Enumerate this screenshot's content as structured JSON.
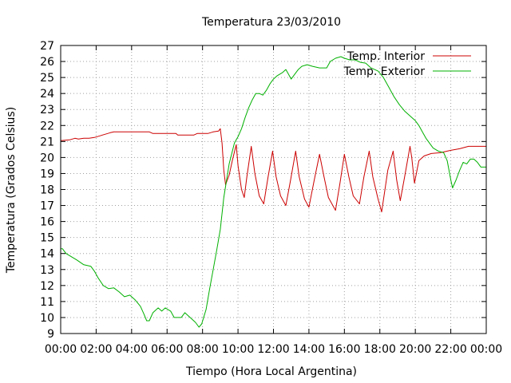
{
  "chart_data": {
    "type": "line",
    "title": "Temperatura 23/03/2010",
    "xlabel": "Tiempo (Hora Local Argentina)",
    "ylabel": "Temperatura (Grados Celsius)",
    "xlim": [
      0,
      24
    ],
    "ylim": [
      9,
      27
    ],
    "x_ticks": [
      "00:00",
      "02:00",
      "04:00",
      "06:00",
      "08:00",
      "10:00",
      "12:00",
      "14:00",
      "16:00",
      "18:00",
      "20:00",
      "22:00",
      "00:00"
    ],
    "y_ticks": [
      "9",
      "10",
      "11",
      "12",
      "13",
      "14",
      "15",
      "16",
      "17",
      "18",
      "19",
      "20",
      "21",
      "22",
      "23",
      "24",
      "25",
      "26",
      "27"
    ],
    "grid": true,
    "legend_position": "top-right",
    "series": [
      {
        "name": "Temp. Interior",
        "color": "#cc0000",
        "points": [
          [
            0.0,
            21.05
          ],
          [
            0.5,
            21.1
          ],
          [
            0.8,
            21.2
          ],
          [
            1.0,
            21.15
          ],
          [
            1.3,
            21.2
          ],
          [
            1.6,
            21.2
          ],
          [
            1.9,
            21.25
          ],
          [
            2.2,
            21.35
          ],
          [
            2.5,
            21.45
          ],
          [
            2.8,
            21.55
          ],
          [
            3.0,
            21.6
          ],
          [
            4.0,
            21.6
          ],
          [
            5.0,
            21.6
          ],
          [
            5.2,
            21.5
          ],
          [
            6.0,
            21.5
          ],
          [
            6.5,
            21.5
          ],
          [
            6.6,
            21.4
          ],
          [
            7.0,
            21.4
          ],
          [
            7.5,
            21.4
          ],
          [
            7.7,
            21.5
          ],
          [
            8.0,
            21.5
          ],
          [
            8.3,
            21.5
          ],
          [
            8.6,
            21.6
          ],
          [
            8.9,
            21.65
          ],
          [
            9.0,
            21.8
          ],
          [
            9.1,
            20.9
          ],
          [
            9.2,
            19.2
          ],
          [
            9.3,
            18.3
          ],
          [
            9.5,
            18.9
          ],
          [
            9.7,
            19.9
          ],
          [
            9.9,
            20.8
          ],
          [
            10.0,
            19.5
          ],
          [
            10.2,
            18.0
          ],
          [
            10.35,
            17.5
          ],
          [
            10.5,
            18.8
          ],
          [
            10.75,
            20.7
          ],
          [
            10.95,
            19.0
          ],
          [
            11.2,
            17.6
          ],
          [
            11.45,
            17.1
          ],
          [
            11.7,
            18.8
          ],
          [
            11.95,
            20.4
          ],
          [
            12.15,
            18.8
          ],
          [
            12.4,
            17.6
          ],
          [
            12.7,
            17.0
          ],
          [
            12.95,
            18.5
          ],
          [
            13.25,
            20.4
          ],
          [
            13.45,
            18.8
          ],
          [
            13.75,
            17.4
          ],
          [
            14.0,
            16.9
          ],
          [
            14.3,
            18.6
          ],
          [
            14.6,
            20.2
          ],
          [
            14.85,
            18.8
          ],
          [
            15.1,
            17.5
          ],
          [
            15.5,
            16.7
          ],
          [
            15.75,
            18.4
          ],
          [
            16.0,
            20.2
          ],
          [
            16.25,
            18.8
          ],
          [
            16.5,
            17.6
          ],
          [
            16.85,
            17.1
          ],
          [
            17.1,
            18.8
          ],
          [
            17.4,
            20.4
          ],
          [
            17.6,
            18.8
          ],
          [
            17.9,
            17.4
          ],
          [
            18.1,
            16.6
          ],
          [
            18.45,
            19.2
          ],
          [
            18.75,
            20.4
          ],
          [
            18.95,
            18.6
          ],
          [
            19.15,
            17.3
          ],
          [
            19.4,
            18.8
          ],
          [
            19.7,
            20.7
          ],
          [
            19.8,
            20.0
          ],
          [
            19.95,
            18.4
          ],
          [
            20.2,
            19.8
          ],
          [
            20.5,
            20.1
          ],
          [
            20.9,
            20.25
          ],
          [
            21.4,
            20.3
          ],
          [
            22.0,
            20.45
          ],
          [
            22.5,
            20.55
          ],
          [
            23.0,
            20.7
          ],
          [
            24.0,
            20.7
          ]
        ]
      },
      {
        "name": "Temp. Exterior",
        "color": "#00b000",
        "points": [
          [
            0.0,
            14.3
          ],
          [
            0.1,
            14.3
          ],
          [
            0.3,
            14.0
          ],
          [
            0.6,
            13.8
          ],
          [
            0.9,
            13.6
          ],
          [
            1.3,
            13.3
          ],
          [
            1.7,
            13.2
          ],
          [
            1.9,
            12.9
          ],
          [
            2.1,
            12.5
          ],
          [
            2.4,
            12.0
          ],
          [
            2.7,
            11.8
          ],
          [
            3.0,
            11.85
          ],
          [
            3.3,
            11.6
          ],
          [
            3.6,
            11.3
          ],
          [
            3.9,
            11.4
          ],
          [
            4.2,
            11.1
          ],
          [
            4.5,
            10.7
          ],
          [
            4.7,
            10.2
          ],
          [
            4.85,
            9.8
          ],
          [
            5.0,
            9.8
          ],
          [
            5.2,
            10.3
          ],
          [
            5.5,
            10.6
          ],
          [
            5.7,
            10.4
          ],
          [
            5.9,
            10.6
          ],
          [
            6.2,
            10.4
          ],
          [
            6.4,
            10.0
          ],
          [
            6.8,
            10.0
          ],
          [
            7.0,
            10.3
          ],
          [
            7.2,
            10.1
          ],
          [
            7.4,
            9.9
          ],
          [
            7.6,
            9.7
          ],
          [
            7.8,
            9.4
          ],
          [
            7.95,
            9.6
          ],
          [
            8.2,
            10.5
          ],
          [
            8.4,
            11.8
          ],
          [
            8.6,
            13.0
          ],
          [
            8.8,
            14.2
          ],
          [
            9.0,
            15.5
          ],
          [
            9.2,
            17.5
          ],
          [
            9.5,
            19.6
          ],
          [
            9.8,
            20.9
          ],
          [
            10.0,
            21.3
          ],
          [
            10.2,
            21.8
          ],
          [
            10.4,
            22.5
          ],
          [
            10.6,
            23.1
          ],
          [
            10.8,
            23.6
          ],
          [
            11.0,
            24.0
          ],
          [
            11.2,
            24.0
          ],
          [
            11.4,
            23.9
          ],
          [
            11.6,
            24.2
          ],
          [
            11.8,
            24.6
          ],
          [
            12.0,
            24.9
          ],
          [
            12.2,
            25.1
          ],
          [
            12.5,
            25.3
          ],
          [
            12.7,
            25.5
          ],
          [
            12.8,
            25.3
          ],
          [
            13.0,
            24.9
          ],
          [
            13.2,
            25.2
          ],
          [
            13.4,
            25.5
          ],
          [
            13.6,
            25.7
          ],
          [
            13.9,
            25.8
          ],
          [
            14.2,
            25.7
          ],
          [
            14.6,
            25.6
          ],
          [
            15.0,
            25.6
          ],
          [
            15.2,
            26.0
          ],
          [
            15.5,
            26.2
          ],
          [
            15.8,
            26.3
          ],
          [
            16.0,
            26.2
          ],
          [
            16.3,
            26.1
          ],
          [
            16.6,
            26.1
          ],
          [
            16.9,
            25.95
          ],
          [
            17.2,
            25.9
          ],
          [
            17.5,
            25.6
          ],
          [
            17.9,
            25.4
          ],
          [
            18.2,
            25.0
          ],
          [
            18.5,
            24.4
          ],
          [
            18.8,
            23.8
          ],
          [
            19.1,
            23.3
          ],
          [
            19.4,
            22.9
          ],
          [
            19.7,
            22.6
          ],
          [
            20.0,
            22.3
          ],
          [
            20.2,
            22.0
          ],
          [
            20.4,
            21.6
          ],
          [
            20.6,
            21.2
          ],
          [
            20.8,
            20.9
          ],
          [
            21.0,
            20.6
          ],
          [
            21.3,
            20.4
          ],
          [
            21.6,
            20.3
          ],
          [
            21.8,
            19.8
          ],
          [
            22.0,
            18.6
          ],
          [
            22.1,
            18.1
          ],
          [
            22.3,
            18.6
          ],
          [
            22.5,
            19.2
          ],
          [
            22.7,
            19.7
          ],
          [
            22.9,
            19.6
          ],
          [
            23.1,
            19.9
          ],
          [
            23.3,
            19.9
          ],
          [
            23.5,
            19.7
          ],
          [
            23.7,
            19.4
          ],
          [
            24.0,
            19.4
          ]
        ]
      }
    ]
  }
}
